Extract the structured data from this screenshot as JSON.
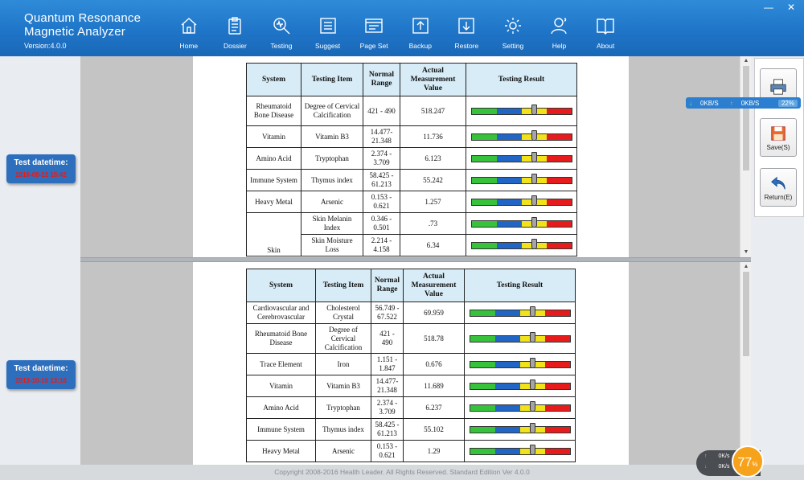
{
  "app": {
    "title_line1": "Quantum Resonance",
    "title_line2": "Magnetic Analyzer",
    "version": "Version:4.0.0"
  },
  "nav": [
    {
      "label": "Home",
      "icon": "home-icon"
    },
    {
      "label": "Dossier",
      "icon": "clipboard-icon"
    },
    {
      "label": "Testing",
      "icon": "magnifier-icon"
    },
    {
      "label": "Suggest",
      "icon": "list-icon"
    },
    {
      "label": "Page Set",
      "icon": "page-set-icon"
    },
    {
      "label": "Backup",
      "icon": "backup-icon"
    },
    {
      "label": "Restore",
      "icon": "restore-icon"
    },
    {
      "label": "Setting",
      "icon": "gear-icon"
    },
    {
      "label": "Help",
      "icon": "help-user-icon"
    },
    {
      "label": "About",
      "icon": "book-icon"
    }
  ],
  "window": {
    "minimize": "—",
    "close": "✕"
  },
  "badges": [
    {
      "label": "Test datetime:",
      "value": "2016-08-22 15:42"
    },
    {
      "label": "Test datetime:",
      "value": "2013-10-16 13:16"
    }
  ],
  "table_headers": [
    "System",
    "Testing Item",
    "Normal Range",
    "Actual Measurement Value",
    "Testing Result"
  ],
  "report1": [
    {
      "system": "Rheumatoid Bone Disease",
      "item": "Degree of Cervical Calcification",
      "range": "421 - 490",
      "value": "518.247",
      "level": 0.63
    },
    {
      "system": "Vitamin",
      "item": "Vitamin B3",
      "range": "14.477-21.348",
      "value": "11.736",
      "level": 0.63
    },
    {
      "system": "Amino Acid",
      "item": "Tryptophan",
      "range": "2.374 - 3.709",
      "value": "6.123",
      "level": 0.63
    },
    {
      "system": "Immune System",
      "item": "Thymus index",
      "range": "58.425 - 61.213",
      "value": "55.242",
      "level": 0.63
    },
    {
      "system": "Heavy Metal",
      "item": "Arsenic",
      "range": "0.153 - 0.621",
      "value": "1.257",
      "level": 0.63
    },
    {
      "system": "Skin",
      "item": "Skin Melanin Index",
      "range": "0.346 - 0.501",
      "value": ".73",
      "level": 0.63
    },
    {
      "system": "",
      "item": "Skin Moisture Loss",
      "range": "2.214 - 4.158",
      "value": "6.34",
      "level": 0.63
    }
  ],
  "report2": [
    {
      "system": "Cardiovascular and Cerebrovascular",
      "item": "Cholesterol Crystal",
      "range": "56.749 - 67.522",
      "value": "69.959",
      "level": 0.63
    },
    {
      "system": "Rheumatoid Bone Disease",
      "item": "Degree of Cervical Calcification",
      "range": "421 - 490",
      "value": "518.78",
      "level": 0.63
    },
    {
      "system": "Trace Element",
      "item": "Iron",
      "range": "1.151 - 1.847",
      "value": "0.676",
      "level": 0.63
    },
    {
      "system": "Vitamin",
      "item": "Vitamin B3",
      "range": "14.477-21.348",
      "value": "11.689",
      "level": 0.63
    },
    {
      "system": "Amino Acid",
      "item": "Tryptophan",
      "range": "2.374 - 3.709",
      "value": "6.237",
      "level": 0.63
    },
    {
      "system": "Immune System",
      "item": "Thymus index",
      "range": "58.425 - 61.213",
      "value": "55.102",
      "level": 0.63
    },
    {
      "system": "Heavy Metal",
      "item": "Arsenic",
      "range": "0.153 - 0.621",
      "value": "1.29",
      "level": 0.63
    }
  ],
  "actions": {
    "print": "",
    "save": "Save(S)",
    "return": "Return(E)"
  },
  "network": {
    "down": "0KB/S",
    "up": "0KB/S",
    "percent": "22%"
  },
  "speed": {
    "up": "0K/s",
    "down": "0K/s",
    "percent": "77",
    "unit": "%"
  },
  "footer": "Copyright 2008-2016 Health Leader. All Rights Reserved.  Standard Edition Ver 4.0.0",
  "colors": {
    "header": "#1f75c8",
    "table_header": "#d7ecf7",
    "green": "#36c23a",
    "blue": "#2166c4",
    "yellow": "#f1e21a",
    "red": "#e61c1c"
  }
}
